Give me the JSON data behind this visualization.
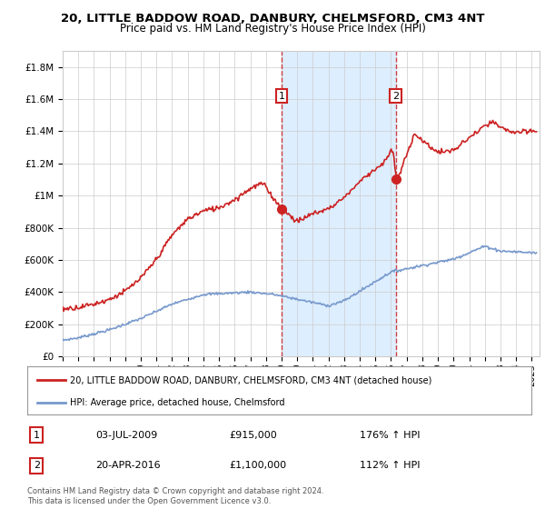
{
  "title": "20, LITTLE BADDOW ROAD, DANBURY, CHELMSFORD, CM3 4NT",
  "subtitle": "Price paid vs. HM Land Registry's House Price Index (HPI)",
  "xlim_start": 1995.0,
  "xlim_end": 2025.5,
  "ylim": [
    0,
    1900000
  ],
  "yticks": [
    0,
    200000,
    400000,
    600000,
    800000,
    1000000,
    1200000,
    1400000,
    1600000,
    1800000
  ],
  "ytick_labels": [
    "£0",
    "£200K",
    "£400K",
    "£600K",
    "£800K",
    "£1M",
    "£1.2M",
    "£1.4M",
    "£1.6M",
    "£1.8M"
  ],
  "xticks": [
    1995,
    1996,
    1997,
    1998,
    1999,
    2000,
    2001,
    2002,
    2003,
    2004,
    2005,
    2006,
    2007,
    2008,
    2009,
    2010,
    2011,
    2012,
    2013,
    2014,
    2015,
    2016,
    2017,
    2018,
    2019,
    2020,
    2021,
    2022,
    2023,
    2024,
    2025
  ],
  "hpi_color": "#7799cc",
  "price_color": "#cc2222",
  "sale1_x": 2009.0,
  "sale1_y": 915000,
  "sale1_label": "1",
  "sale1_date": "03-JUL-2009",
  "sale1_price": "£915,000",
  "sale1_hpi": "176% ↑ HPI",
  "sale2_x": 2016.3,
  "sale2_y": 1100000,
  "sale2_label": "2",
  "sale2_date": "20-APR-2016",
  "sale2_price": "£1,100,000",
  "sale2_hpi": "112% ↑ HPI",
  "legend_line1": "20, LITTLE BADDOW ROAD, DANBURY, CHELMSFORD, CM3 4NT (detached house)",
  "legend_line2": "HPI: Average price, detached house, Chelmsford",
  "footnote": "Contains HM Land Registry data © Crown copyright and database right 2024.\nThis data is licensed under the Open Government Licence v3.0.",
  "shaded_region_color": "#ddeeff",
  "background_color": "#ffffff",
  "grid_color": "#cccccc"
}
